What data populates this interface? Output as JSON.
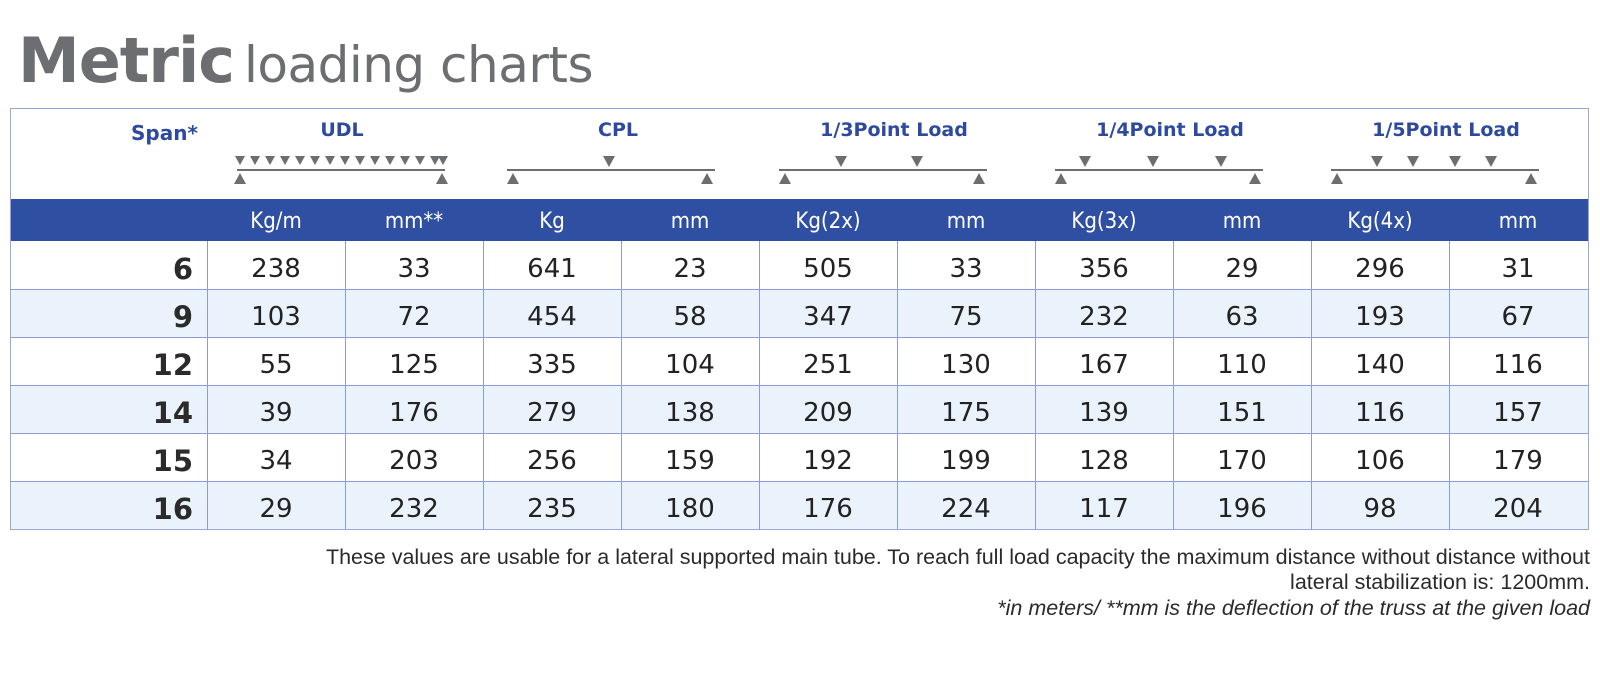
{
  "title": {
    "bold": "Metric",
    "light": "loading charts"
  },
  "header": {
    "span_label": "Span*",
    "groups": [
      "UDL",
      "CPL",
      "1/3Point Load",
      "1/4Point Load",
      "1/5Point Load"
    ],
    "units": [
      "Kg/m",
      "mm**",
      "Kg",
      "mm",
      "Kg(2x)",
      "mm",
      "Kg(3x)",
      "mm",
      "Kg(4x)",
      "mm"
    ]
  },
  "rows": [
    {
      "span": "6",
      "values": [
        "238",
        "33",
        "641",
        "23",
        "505",
        "33",
        "356",
        "29",
        "296",
        "31"
      ]
    },
    {
      "span": "9",
      "values": [
        "103",
        "72",
        "454",
        "58",
        "347",
        "75",
        "232",
        "63",
        "193",
        "67"
      ]
    },
    {
      "span": "12",
      "values": [
        "55",
        "125",
        "335",
        "104",
        "251",
        "130",
        "167",
        "110",
        "140",
        "116"
      ]
    },
    {
      "span": "14",
      "values": [
        "39",
        "176",
        "279",
        "138",
        "209",
        "175",
        "139",
        "151",
        "116",
        "157"
      ]
    },
    {
      "span": "15",
      "values": [
        "34",
        "203",
        "256",
        "159",
        "192",
        "199",
        "128",
        "170",
        "106",
        "179"
      ]
    },
    {
      "span": "16",
      "values": [
        "29",
        "232",
        "235",
        "180",
        "176",
        "224",
        "117",
        "196",
        "98",
        "204"
      ]
    }
  ],
  "footnotes": {
    "line1": "These values are usable for a lateral supported main tube. To reach full load capacity the maximum distance without distance without",
    "line2": "lateral stabilization is: 1200mm.",
    "line3": "*in meters/ **mm is the deflection of the truss at the given load"
  },
  "colors": {
    "band": "#2f4fa2",
    "header_text": "#2e4a9e",
    "alt_row": "#eaf3fb",
    "grid": "#8c9bd0",
    "title": "#6d6e71"
  }
}
